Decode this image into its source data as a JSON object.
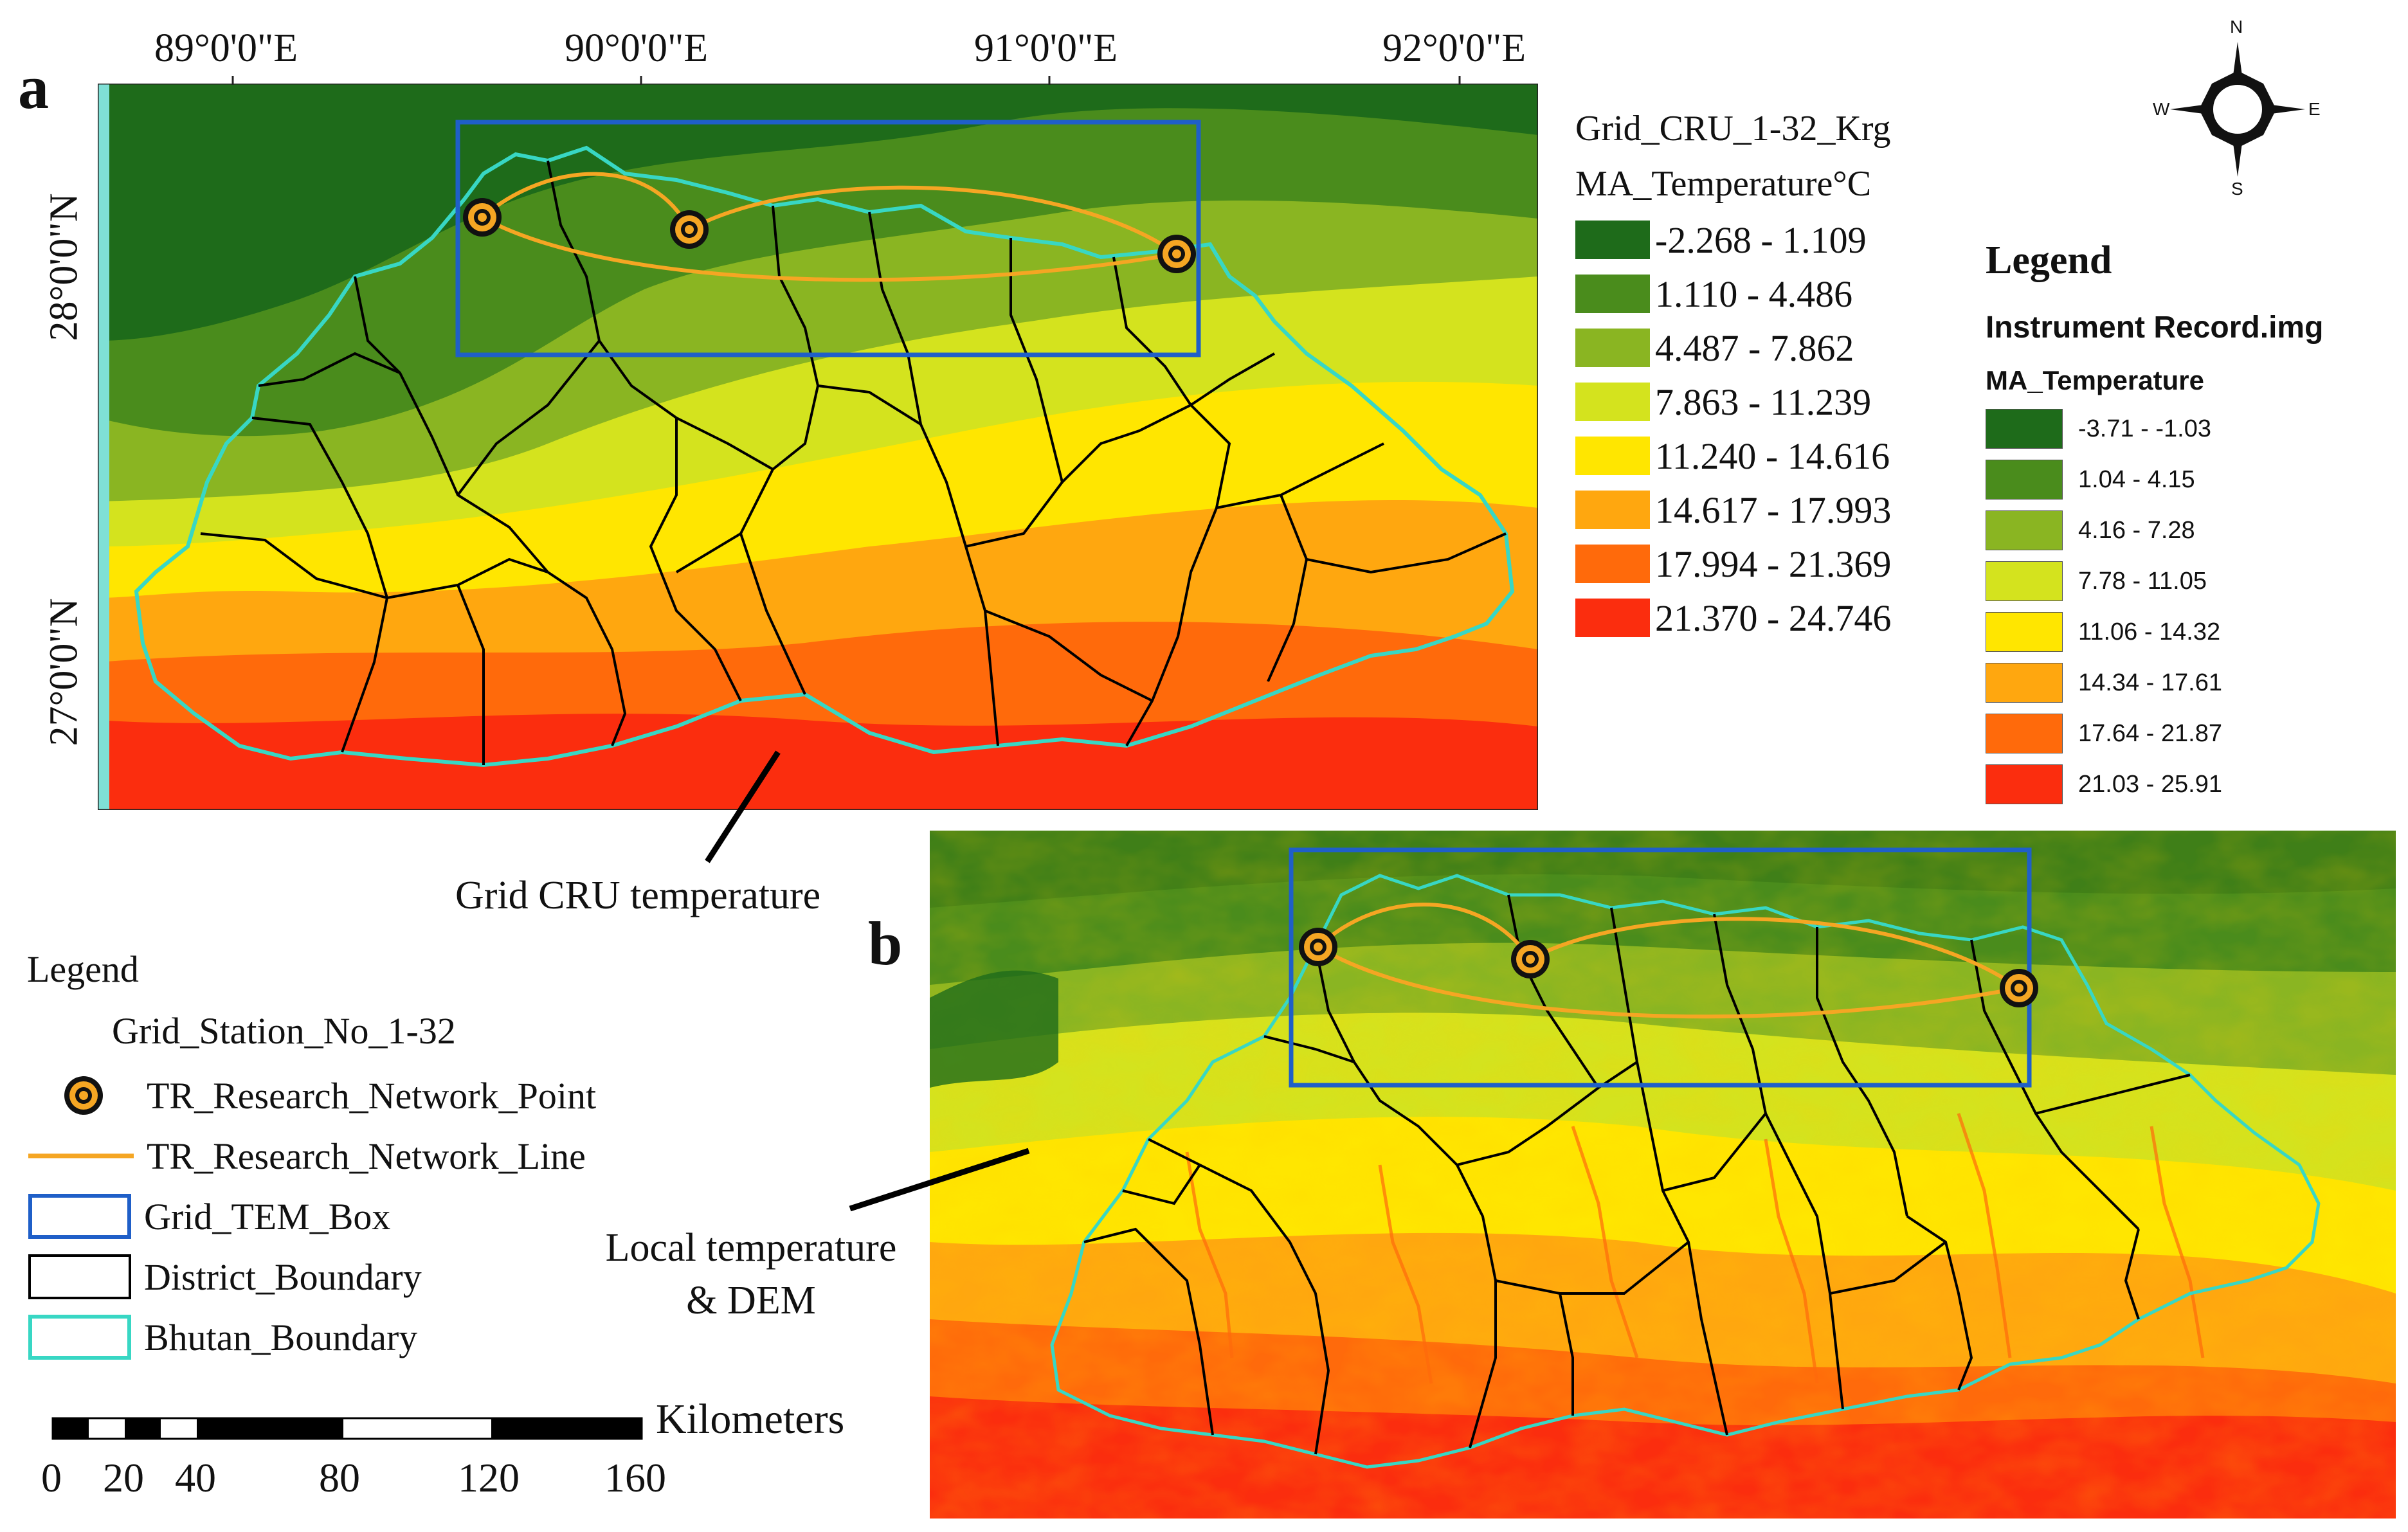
{
  "panel_a": {
    "letter": "a",
    "lon_labels": [
      "89°0'0\"E",
      "90°0'0\"E",
      "91°0'0\"E",
      "92°0'0\"E"
    ],
    "lat_labels": [
      "28°0'0\"N",
      "27°0'0\"N"
    ]
  },
  "panel_b": {
    "letter": "b"
  },
  "cru_legend": {
    "title": "Grid_CRU_1-32_Krg",
    "subtitle": "MA_Temperature°C",
    "classes": [
      {
        "label": "-2.268 - 1.109",
        "color": "#1e6b1a"
      },
      {
        "label": "1.110 - 4.486",
        "color": "#4a8c1c"
      },
      {
        "label": "4.487 - 7.862",
        "color": "#8ab522"
      },
      {
        "label": "7.863 - 11.239",
        "color": "#d4e31e"
      },
      {
        "label": "11.240 - 14.616",
        "color": "#ffe600"
      },
      {
        "label": "14.617 - 17.993",
        "color": "#ffa70f"
      },
      {
        "label": "17.994 - 21.369",
        "color": "#ff6a0b"
      },
      {
        "label": "21.370 - 24.746",
        "color": "#fb2d0e"
      }
    ]
  },
  "compass": {
    "n": "N",
    "s": "S",
    "e": "E",
    "w": "W"
  },
  "instrument_legend": {
    "heading": "Legend",
    "title": "Instrument Record.img",
    "subtitle": "MA_Temperature",
    "classes": [
      {
        "label": "-3.71 - -1.03",
        "color": "#1e6b1a"
      },
      {
        "label": "1.04 - 4.15",
        "color": "#4a8c1c"
      },
      {
        "label": "4.16 - 7.28",
        "color": "#8ab522"
      },
      {
        "label": "7.78 - 11.05",
        "color": "#d4e31e"
      },
      {
        "label": "11.06 - 14.32",
        "color": "#ffe600"
      },
      {
        "label": "14.34 - 17.61",
        "color": "#ffa70f"
      },
      {
        "label": "17.64 - 21.87",
        "color": "#ff6a0b"
      },
      {
        "label": "21.03 - 25.91",
        "color": "#fb2d0e"
      }
    ]
  },
  "annotations": {
    "grid_cru": "Grid CRU temperature",
    "local_line1": "Local temperature",
    "local_line2": "& DEM"
  },
  "bottom_legend": {
    "heading": "Legend",
    "station": "Grid_Station_No_1-32",
    "point": "TR_Research_Network_Point",
    "line": "TR_Research_Network_Line",
    "box": "Grid_TEM_Box",
    "district": "District_Boundary",
    "bhutan": "Bhutan_Boundary"
  },
  "colors": {
    "network": "#f5a623",
    "box": "#1f5fc8",
    "district": "#000000",
    "bhutan": "#38d7c4"
  },
  "scale_bar": {
    "unit": "Kilometers",
    "ticks": [
      "0",
      "20",
      "40",
      "80",
      "120",
      "160"
    ]
  }
}
